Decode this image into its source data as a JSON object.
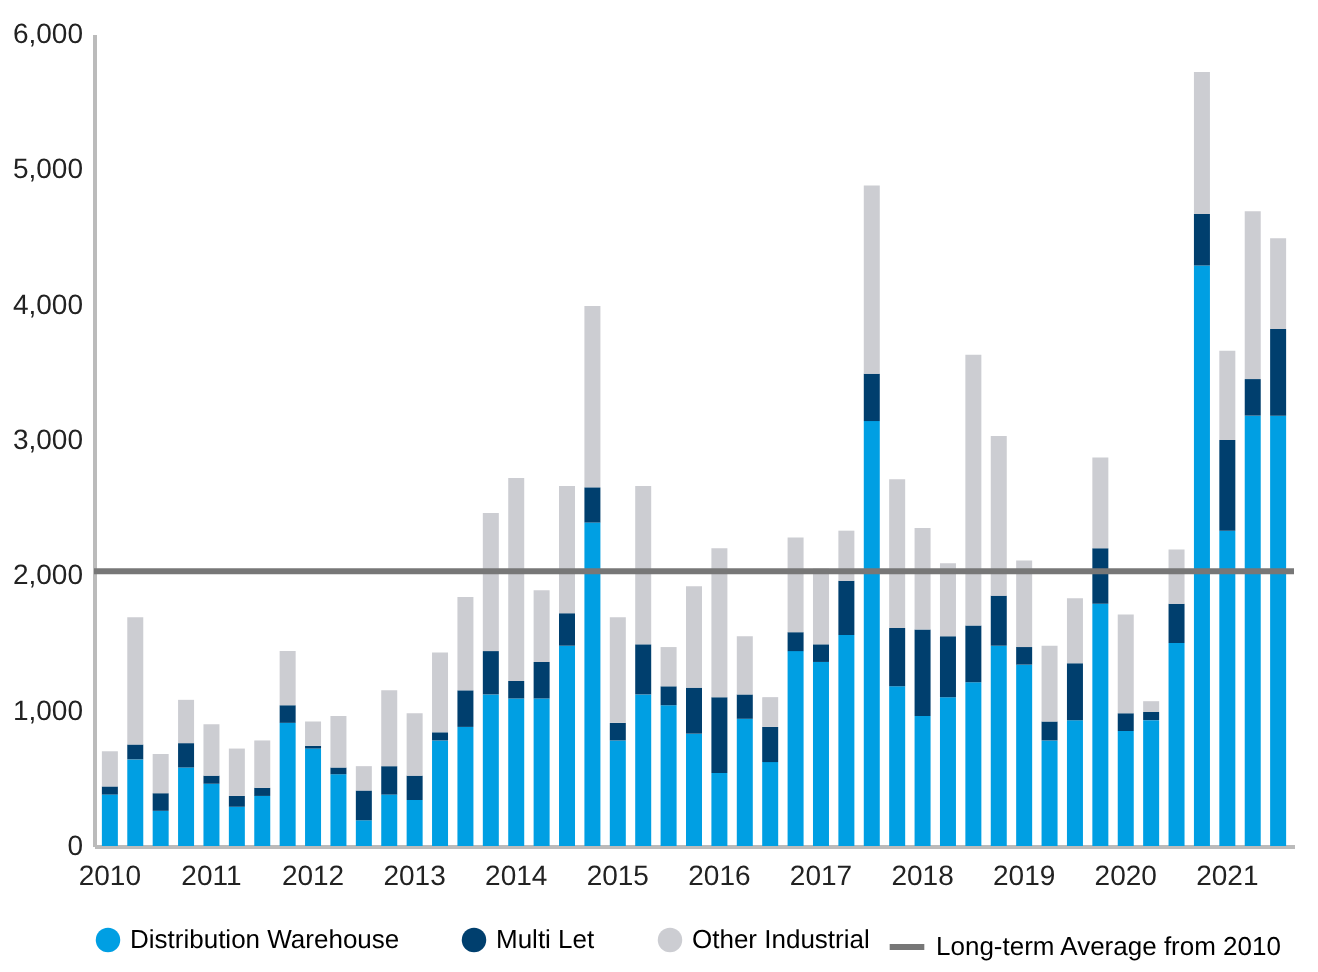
{
  "chart_data": {
    "type": "bar",
    "stacked": true,
    "legend": "bottom",
    "grid": false,
    "categories": [
      "2010",
      null,
      null,
      null,
      "2011",
      null,
      null,
      null,
      "2012",
      null,
      null,
      null,
      "2013",
      null,
      null,
      null,
      "2014",
      null,
      null,
      null,
      "2015",
      null,
      null,
      null,
      "2016",
      null,
      null,
      null,
      "2017",
      null,
      null,
      null,
      "2018",
      null,
      null,
      null,
      "2019",
      null,
      null,
      null,
      "2020",
      null,
      null,
      null,
      "2021",
      null,
      null
    ],
    "series": [
      {
        "name": "Distribution Warehouse",
        "color": "#009fe3",
        "values": [
          380,
          640,
          260,
          580,
          460,
          290,
          370,
          910,
          720,
          530,
          190,
          380,
          340,
          780,
          880,
          1120,
          1090,
          1090,
          1480,
          2390,
          780,
          1120,
          1040,
          830,
          540,
          940,
          620,
          1440,
          1360,
          1560,
          3140,
          1180,
          960,
          1100,
          1210,
          1480,
          1340,
          780,
          930,
          1790,
          850,
          930,
          1500,
          4290,
          2330,
          3180,
          3180
        ]
      },
      {
        "name": "Multi Let",
        "color": "#003f6e",
        "values": [
          60,
          110,
          130,
          180,
          60,
          80,
          60,
          130,
          20,
          50,
          220,
          210,
          180,
          60,
          270,
          320,
          130,
          270,
          240,
          260,
          130,
          370,
          140,
          340,
          560,
          180,
          260,
          140,
          130,
          400,
          350,
          430,
          640,
          450,
          420,
          370,
          130,
          140,
          420,
          410,
          130,
          60,
          290,
          380,
          670,
          270,
          640
        ]
      },
      {
        "name": "Other Industrial",
        "color": "#cccdd2",
        "values": [
          260,
          940,
          290,
          320,
          380,
          350,
          350,
          400,
          180,
          380,
          180,
          560,
          460,
          590,
          690,
          1020,
          1500,
          530,
          940,
          1340,
          780,
          1170,
          290,
          750,
          1100,
          430,
          220,
          700,
          560,
          370,
          1390,
          1100,
          750,
          540,
          2000,
          1180,
          640,
          560,
          480,
          670,
          730,
          80,
          400,
          1050,
          660,
          1240,
          670
        ]
      }
    ],
    "ylim": [
      0,
      6000
    ],
    "yticks": [
      0,
      {
        "value": 1000,
        "label": "1,000"
      },
      {
        "value": 2000,
        "label": "2,000"
      },
      {
        "value": 3000,
        "label": "3,000"
      },
      {
        "value": 4000,
        "label": "4,000"
      },
      {
        "value": 5000,
        "label": "5,000"
      },
      {
        "value": 6000,
        "label": "6,000"
      }
    ],
    "ref_lines": [
      {
        "axis": "y",
        "value": 2030,
        "label": "Long-term Average from 2010",
        "color": "#777777",
        "line_style": "solid"
      }
    ]
  }
}
